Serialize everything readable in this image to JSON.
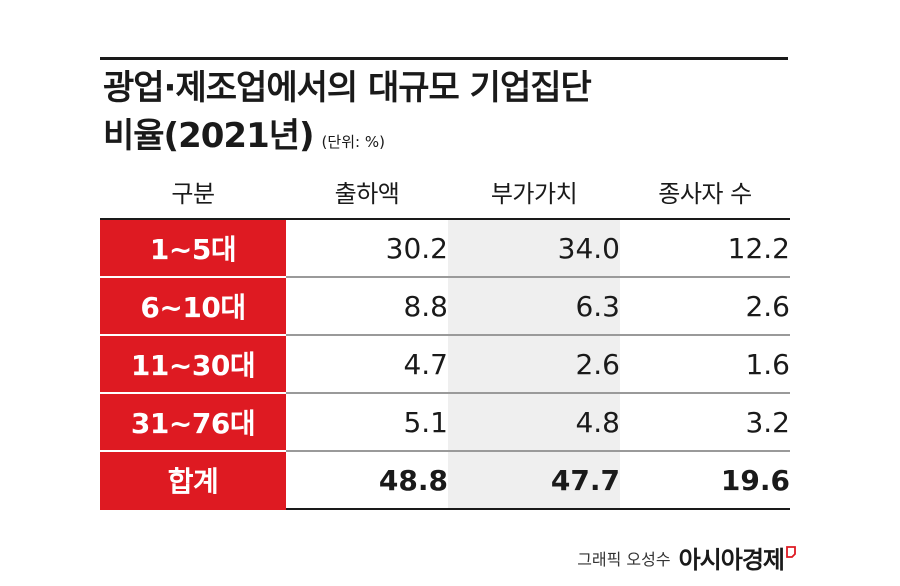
{
  "chart_data": {
    "type": "table",
    "title": [
      "광업·제조업에서의 대규모 기업집단",
      "비율(2021년)"
    ],
    "unit": "(단위: %)",
    "columns": [
      "구분",
      "출하액",
      "부가가치",
      "종사자 수"
    ],
    "rows": [
      {
        "label": "1~5대",
        "values": [
          "30.2",
          "34.0",
          "12.2"
        ]
      },
      {
        "label": "6~10대",
        "values": [
          "8.8",
          "6.3",
          "2.6"
        ]
      },
      {
        "label": "11~30대",
        "values": [
          "4.7",
          "2.6",
          "1.6"
        ]
      },
      {
        "label": "31~76대",
        "values": [
          "5.1",
          "4.8",
          "3.2"
        ]
      },
      {
        "label": "합계",
        "values": [
          "48.8",
          "47.7",
          "19.6"
        ]
      }
    ]
  },
  "credit": {
    "graphic": "그래픽 오성수",
    "brand": "아시아경제"
  },
  "colors": {
    "accent": "#de1a22",
    "shaded_column": "#efefef",
    "text": "#1a1a1a"
  },
  "icons": {
    "logo": "brand-corner-mark-icon"
  }
}
